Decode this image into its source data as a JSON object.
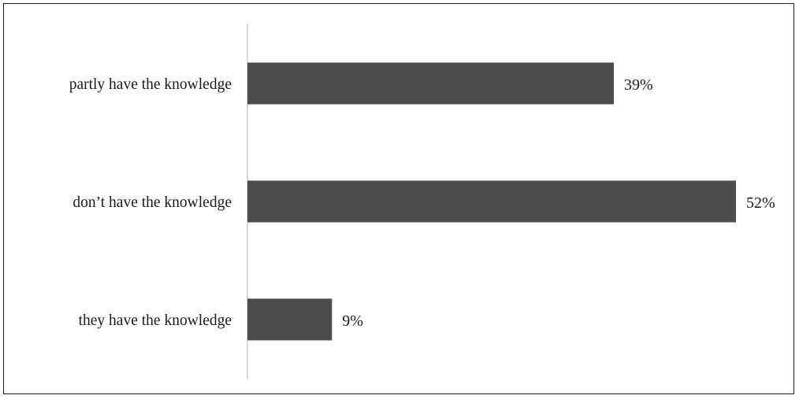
{
  "chart_data": {
    "type": "bar",
    "orientation": "horizontal",
    "categories": [
      "partly have the knowledge",
      "don’t have the knowledge",
      "they have the knowledge"
    ],
    "values": [
      39,
      52,
      9
    ],
    "value_labels": [
      "39%",
      "52%",
      "9%"
    ],
    "unit": "%",
    "xlim": [
      0,
      52
    ],
    "grid": false,
    "legend": "none",
    "bar_color": "#4b4c4e",
    "axis_color": "#bfbfbf"
  }
}
